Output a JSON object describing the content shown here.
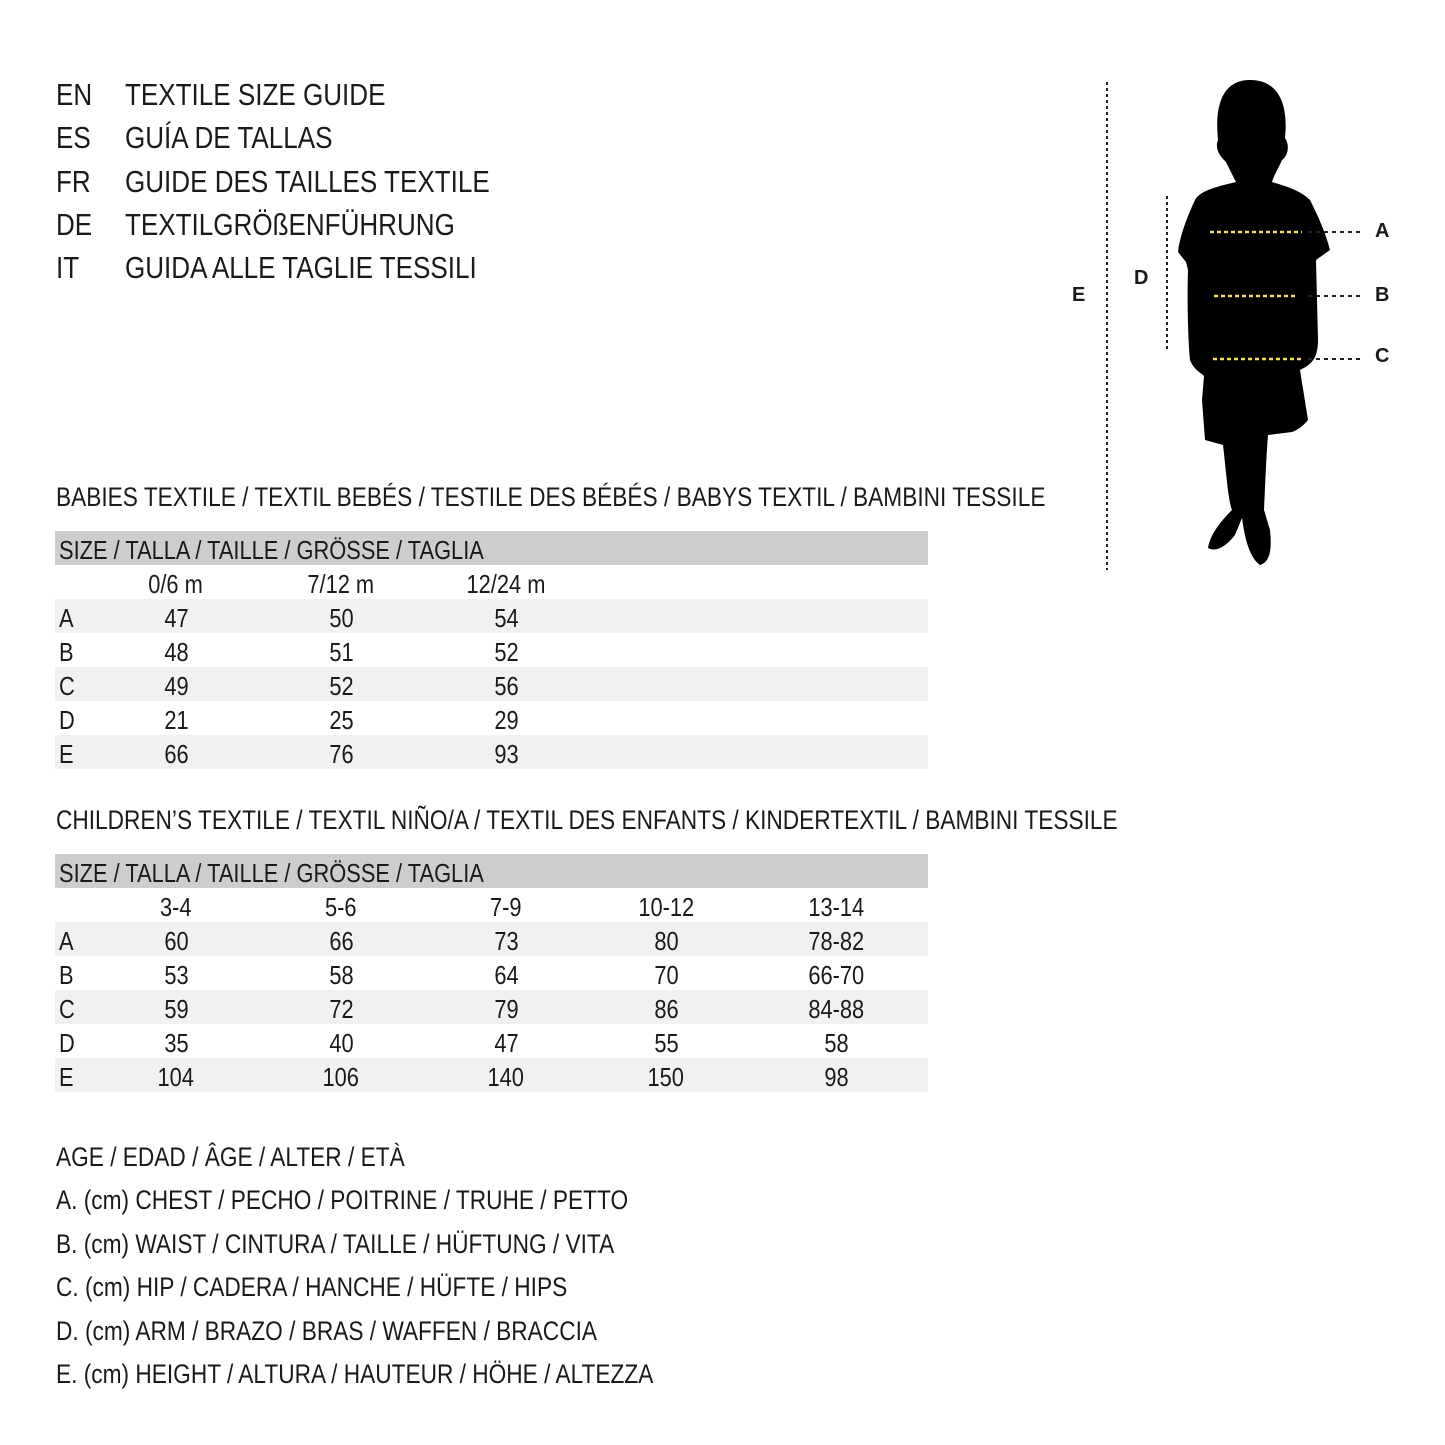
{
  "header": [
    {
      "code": "EN",
      "title": "TEXTILE SIZE GUIDE"
    },
    {
      "code": "ES",
      "title": "GUÍA DE TALLAS"
    },
    {
      "code": "FR",
      "title": "GUIDE DES TAILLES TEXTILE"
    },
    {
      "code": "DE",
      "title": "TEXTILGRÖßENFÜHRUNG"
    },
    {
      "code": "IT",
      "title": "GUIDA ALLE TAGLIE TESSILI"
    }
  ],
  "figure": {
    "labels": {
      "A": "A",
      "B": "B",
      "C": "C",
      "D": "D",
      "E": "E"
    },
    "measure_line_color": "#f2e14a",
    "silhouette_color": "#000000"
  },
  "babies": {
    "title": "BABIES TEXTILE / TEXTIL BEBÉS / TESTILE DES BÉBÉS / BABYS TEXTIL / BAMBINI TESSILE",
    "size_header": "SIZE / TALLA / TAILLE / GRÖSSE / TAGLIA",
    "columns": [
      "0/6 m",
      "7/12 m",
      "12/24 m"
    ],
    "rows": [
      {
        "label": "A",
        "values": [
          "47",
          "50",
          "54"
        ]
      },
      {
        "label": "B",
        "values": [
          "48",
          "51",
          "52"
        ]
      },
      {
        "label": "C",
        "values": [
          "49",
          "52",
          "56"
        ]
      },
      {
        "label": "D",
        "values": [
          "21",
          "25",
          "29"
        ]
      },
      {
        "label": "E",
        "values": [
          "66",
          "76",
          "93"
        ]
      }
    ]
  },
  "children": {
    "title": "CHILDREN’S TEXTILE / TEXTIL NIÑO/A / TEXTIL DES ENFANTS / KINDERTEXTIL / BAMBINI TESSILE",
    "size_header": "SIZE / TALLA / TAILLE / GRÖSSE / TAGLIA",
    "columns": [
      "3-4",
      "5-6",
      "7-9",
      "10-12",
      "13-14"
    ],
    "rows": [
      {
        "label": "A",
        "values": [
          "60",
          "66",
          "73",
          "80",
          "78-82"
        ]
      },
      {
        "label": "B",
        "values": [
          "53",
          "58",
          "64",
          "70",
          "66-70"
        ]
      },
      {
        "label": "C",
        "values": [
          "59",
          "72",
          "79",
          "86",
          "84-88"
        ]
      },
      {
        "label": "D",
        "values": [
          "35",
          "40",
          "47",
          "55",
          "58"
        ]
      },
      {
        "label": "E",
        "values": [
          "104",
          "106",
          "140",
          "150",
          "98"
        ]
      }
    ]
  },
  "legend": [
    "AGE / EDAD / ÂGE / ALTER / ETÀ",
    "A. (cm) CHEST / PECHO / POITRINE / TRUHE / PETTO",
    "B. (cm) WAIST / CINTURA / TAILLE / HÜFTUNG / VITA",
    "C. (cm) HIP / CADERA / HANCHE / HÜFTE / HIPS",
    "D. (cm) ARM / BRAZO / BRAS / WAFFEN / BRACCIA",
    "E. (cm) HEIGHT / ALTURA / HAUTEUR / HÖHE / ALTEZZA"
  ]
}
